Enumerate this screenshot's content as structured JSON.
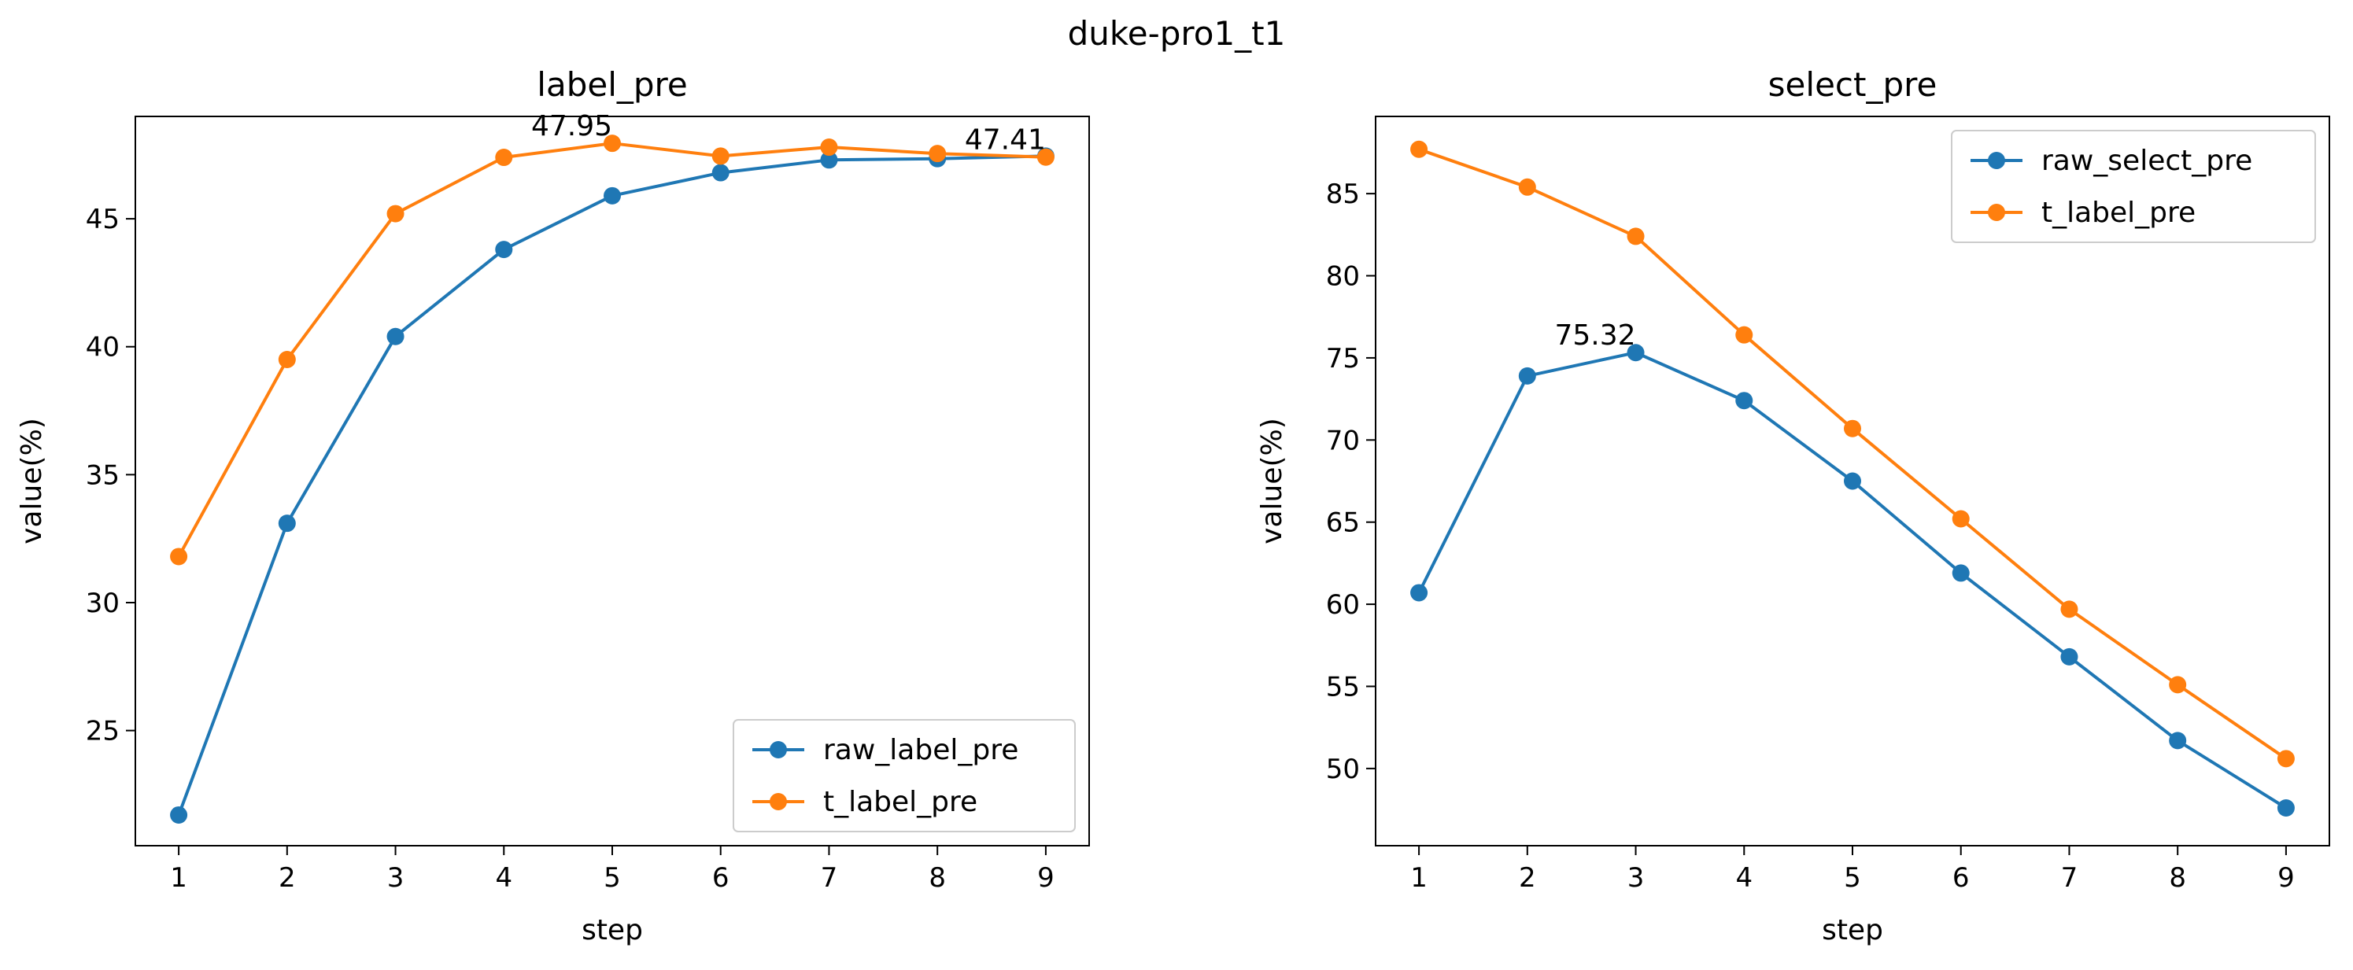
{
  "figure_title": "duke-pro1_t1",
  "colors": {
    "series_a": "#1f77b4",
    "series_b": "#ff7f0e"
  },
  "chart_data": [
    {
      "type": "line",
      "title": "label_pre",
      "xlabel": "step",
      "ylabel": "value(%)",
      "x": [
        1,
        2,
        3,
        4,
        5,
        6,
        7,
        8,
        9
      ],
      "xlim": [
        0.6,
        9.4
      ],
      "ylim": [
        20.5,
        49.0
      ],
      "yticks": [
        25,
        30,
        35,
        40,
        45
      ],
      "grid": false,
      "legend_position": "bottom-right",
      "series": [
        {
          "name": "raw_label_pre",
          "color": "#1f77b4",
          "values": [
            21.7,
            33.1,
            40.4,
            43.8,
            45.9,
            46.8,
            47.3,
            47.35,
            47.45
          ]
        },
        {
          "name": "t_label_pre",
          "color": "#ff7f0e",
          "values": [
            31.8,
            39.5,
            45.2,
            47.4,
            47.95,
            47.45,
            47.8,
            47.55,
            47.41
          ]
        }
      ],
      "annotations": [
        {
          "text": "47.95",
          "x": 5,
          "y": 47.95
        },
        {
          "text": "47.41",
          "x": 9,
          "y": 47.41
        }
      ]
    },
    {
      "type": "line",
      "title": "select_pre",
      "xlabel": "step",
      "ylabel": "value(%)",
      "x": [
        1,
        2,
        3,
        4,
        5,
        6,
        7,
        8,
        9
      ],
      "xlim": [
        0.6,
        9.4
      ],
      "ylim": [
        45.3,
        89.7
      ],
      "yticks": [
        50,
        55,
        60,
        65,
        70,
        75,
        80,
        85
      ],
      "grid": false,
      "legend_position": "top-right",
      "series": [
        {
          "name": "raw_select_pre",
          "color": "#1f77b4",
          "values": [
            60.7,
            73.9,
            75.32,
            72.4,
            67.5,
            61.9,
            56.8,
            51.7,
            47.6
          ]
        },
        {
          "name": "t_label_pre",
          "color": "#ff7f0e",
          "values": [
            87.7,
            85.4,
            82.4,
            76.4,
            70.7,
            65.2,
            59.7,
            55.1,
            50.6
          ]
        }
      ],
      "annotations": [
        {
          "text": "75.32",
          "x": 3,
          "y": 75.32
        }
      ]
    }
  ]
}
